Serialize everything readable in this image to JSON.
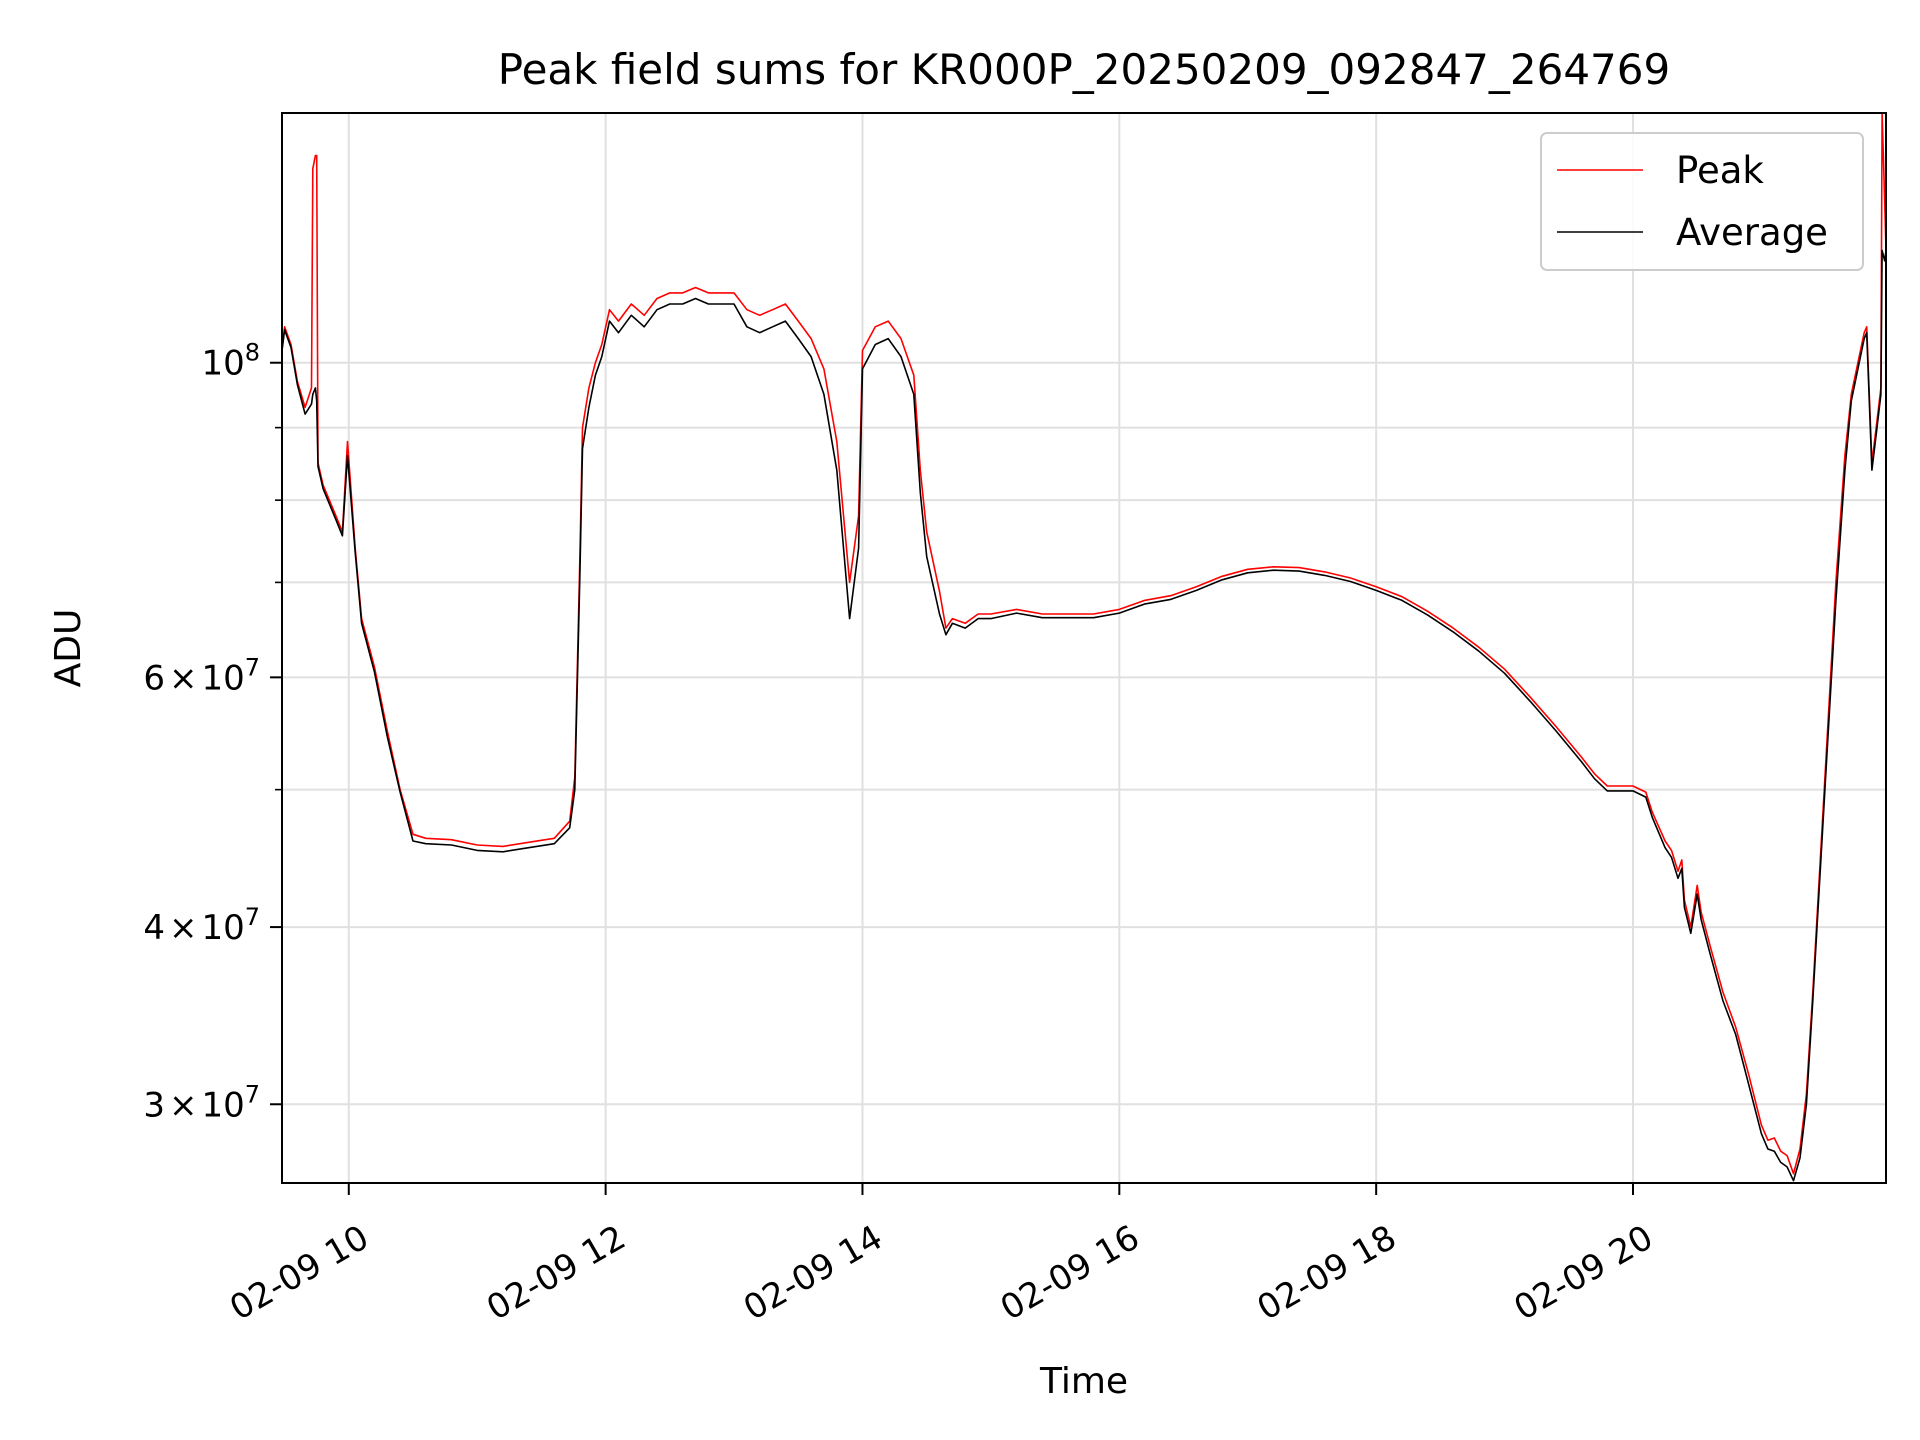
{
  "chart_data": {
    "type": "line",
    "title": "Peak field sums for KR000P_20250209_092847_264769",
    "xlabel": "Time",
    "ylabel": "ADU",
    "x_unit": "hour of 2025-02-09",
    "xlim": [
      9.48,
      21.97
    ],
    "ylim": [
      26400000,
      150000000
    ],
    "yscale": "log",
    "grid": true,
    "legend_position": "top-right",
    "x_ticks": [
      {
        "value": 10,
        "label": "02-09 10"
      },
      {
        "value": 12,
        "label": "02-09 12"
      },
      {
        "value": 14,
        "label": "02-09 14"
      },
      {
        "value": 16,
        "label": "02-09 16"
      },
      {
        "value": 18,
        "label": "02-09 18"
      },
      {
        "value": 20,
        "label": "02-09 20"
      }
    ],
    "y_ticks": [
      {
        "value": 30000000,
        "mantissa": "3",
        "exponent": "7"
      },
      {
        "value": 40000000,
        "mantissa": "4",
        "exponent": "7"
      },
      {
        "value": 60000000,
        "mantissa": "6",
        "exponent": "7"
      },
      {
        "value": 100000000,
        "mantissa": "",
        "exponent": "8"
      }
    ],
    "y_minor_ticks": [
      50000000,
      70000000,
      80000000,
      90000000
    ],
    "series": [
      {
        "name": "Peak",
        "color": "#ff0000",
        "points": [
          [
            9.48,
            102000000
          ],
          [
            9.5,
            106000000
          ],
          [
            9.55,
            103000000
          ],
          [
            9.6,
            97000000
          ],
          [
            9.66,
            93000000
          ],
          [
            9.71,
            96000000
          ],
          [
            9.72,
            137000000
          ],
          [
            9.74,
            140000000
          ],
          [
            9.75,
            140000000
          ],
          [
            9.76,
            85000000
          ],
          [
            9.8,
            82000000
          ],
          [
            9.9,
            78000000
          ],
          [
            9.95,
            76000000
          ],
          [
            9.99,
            88000000
          ],
          [
            10.05,
            74000000
          ],
          [
            10.1,
            66000000
          ],
          [
            10.2,
            61000000
          ],
          [
            10.3,
            55000000
          ],
          [
            10.4,
            50000000
          ],
          [
            10.5,
            46500000
          ],
          [
            10.6,
            46200000
          ],
          [
            10.8,
            46100000
          ],
          [
            11.0,
            45700000
          ],
          [
            11.2,
            45600000
          ],
          [
            11.4,
            45900000
          ],
          [
            11.6,
            46200000
          ],
          [
            11.72,
            47500000
          ],
          [
            11.76,
            51000000
          ],
          [
            11.8,
            73000000
          ],
          [
            11.82,
            90000000
          ],
          [
            11.87,
            96000000
          ],
          [
            11.92,
            100000000
          ],
          [
            11.97,
            103000000
          ],
          [
            12.03,
            109000000
          ],
          [
            12.1,
            107000000
          ],
          [
            12.2,
            110000000
          ],
          [
            12.3,
            108000000
          ],
          [
            12.4,
            111000000
          ],
          [
            12.5,
            112000000
          ],
          [
            12.6,
            112000000
          ],
          [
            12.7,
            113000000
          ],
          [
            12.8,
            112000000
          ],
          [
            12.9,
            112000000
          ],
          [
            13.0,
            112000000
          ],
          [
            13.1,
            109000000
          ],
          [
            13.2,
            108000000
          ],
          [
            13.3,
            109000000
          ],
          [
            13.4,
            110000000
          ],
          [
            13.5,
            107000000
          ],
          [
            13.6,
            104000000
          ],
          [
            13.7,
            99000000
          ],
          [
            13.8,
            88000000
          ],
          [
            13.9,
            70000000
          ],
          [
            13.97,
            78000000
          ],
          [
            14.0,
            102000000
          ],
          [
            14.1,
            106000000
          ],
          [
            14.2,
            107000000
          ],
          [
            14.3,
            104000000
          ],
          [
            14.4,
            98000000
          ],
          [
            14.45,
            84000000
          ],
          [
            14.5,
            76000000
          ],
          [
            14.6,
            69000000
          ],
          [
            14.65,
            65000000
          ],
          [
            14.7,
            66000000
          ],
          [
            14.8,
            65500000
          ],
          [
            14.9,
            66500000
          ],
          [
            15.0,
            66500000
          ],
          [
            15.2,
            67000000
          ],
          [
            15.4,
            66500000
          ],
          [
            15.6,
            66500000
          ],
          [
            15.8,
            66500000
          ],
          [
            16.0,
            67000000
          ],
          [
            16.2,
            68000000
          ],
          [
            16.4,
            68500000
          ],
          [
            16.6,
            69500000
          ],
          [
            16.8,
            70700000
          ],
          [
            17.0,
            71500000
          ],
          [
            17.2,
            71800000
          ],
          [
            17.4,
            71700000
          ],
          [
            17.6,
            71200000
          ],
          [
            17.8,
            70500000
          ],
          [
            18.0,
            69500000
          ],
          [
            18.2,
            68400000
          ],
          [
            18.4,
            66800000
          ],
          [
            18.6,
            65000000
          ],
          [
            18.8,
            63000000
          ],
          [
            19.0,
            60800000
          ],
          [
            19.2,
            58100000
          ],
          [
            19.4,
            55400000
          ],
          [
            19.6,
            52700000
          ],
          [
            19.7,
            51300000
          ],
          [
            19.8,
            50300000
          ],
          [
            20.0,
            50300000
          ],
          [
            20.1,
            49800000
          ],
          [
            20.15,
            48200000
          ],
          [
            20.25,
            46000000
          ],
          [
            20.3,
            45300000
          ],
          [
            20.35,
            43800000
          ],
          [
            20.38,
            44600000
          ],
          [
            20.4,
            41800000
          ],
          [
            20.45,
            40000000
          ],
          [
            20.5,
            42800000
          ],
          [
            20.53,
            41000000
          ],
          [
            20.6,
            38800000
          ],
          [
            20.7,
            36000000
          ],
          [
            20.8,
            34000000
          ],
          [
            20.9,
            31500000
          ],
          [
            21.0,
            29000000
          ],
          [
            21.05,
            28300000
          ],
          [
            21.1,
            28400000
          ],
          [
            21.15,
            27800000
          ],
          [
            21.2,
            27600000
          ],
          [
            21.25,
            26800000
          ],
          [
            21.3,
            27900000
          ],
          [
            21.35,
            30500000
          ],
          [
            21.4,
            36000000
          ],
          [
            21.5,
            52000000
          ],
          [
            21.58,
            70000000
          ],
          [
            21.65,
            86000000
          ],
          [
            21.7,
            95000000
          ],
          [
            21.8,
            105000000
          ],
          [
            21.82,
            106000000
          ],
          [
            21.86,
            85000000
          ],
          [
            21.9,
            91000000
          ],
          [
            21.93,
            96000000
          ],
          [
            21.94,
            150000000
          ],
          [
            21.96,
            130000000
          ],
          [
            21.97,
            120000000
          ]
        ]
      },
      {
        "name": "Average",
        "color": "#000000",
        "points": [
          [
            9.48,
            102000000
          ],
          [
            9.5,
            105500000
          ],
          [
            9.55,
            102500000
          ],
          [
            9.6,
            96500000
          ],
          [
            9.66,
            92000000
          ],
          [
            9.71,
            93500000
          ],
          [
            9.72,
            95000000
          ],
          [
            9.74,
            96000000
          ],
          [
            9.75,
            94000000
          ],
          [
            9.76,
            84500000
          ],
          [
            9.8,
            81500000
          ],
          [
            9.9,
            77500000
          ],
          [
            9.95,
            75500000
          ],
          [
            9.99,
            86000000
          ],
          [
            10.05,
            73500000
          ],
          [
            10.1,
            65500000
          ],
          [
            10.2,
            60500000
          ],
          [
            10.3,
            54500000
          ],
          [
            10.4,
            49800000
          ],
          [
            10.5,
            46000000
          ],
          [
            10.6,
            45800000
          ],
          [
            10.8,
            45700000
          ],
          [
            11.0,
            45300000
          ],
          [
            11.2,
            45200000
          ],
          [
            11.4,
            45500000
          ],
          [
            11.6,
            45800000
          ],
          [
            11.72,
            47000000
          ],
          [
            11.76,
            50000000
          ],
          [
            11.8,
            71000000
          ],
          [
            11.82,
            87000000
          ],
          [
            11.87,
            93000000
          ],
          [
            11.92,
            98000000
          ],
          [
            11.97,
            101000000
          ],
          [
            12.03,
            107000000
          ],
          [
            12.1,
            105000000
          ],
          [
            12.2,
            108000000
          ],
          [
            12.3,
            106000000
          ],
          [
            12.4,
            109000000
          ],
          [
            12.5,
            110000000
          ],
          [
            12.6,
            110000000
          ],
          [
            12.7,
            111000000
          ],
          [
            12.8,
            110000000
          ],
          [
            12.9,
            110000000
          ],
          [
            13.0,
            110000000
          ],
          [
            13.1,
            106000000
          ],
          [
            13.2,
            105000000
          ],
          [
            13.3,
            106000000
          ],
          [
            13.4,
            107000000
          ],
          [
            13.5,
            104000000
          ],
          [
            13.6,
            101000000
          ],
          [
            13.7,
            95000000
          ],
          [
            13.8,
            84000000
          ],
          [
            13.9,
            66000000
          ],
          [
            13.97,
            74000000
          ],
          [
            14.0,
            99000000
          ],
          [
            14.1,
            103000000
          ],
          [
            14.2,
            104000000
          ],
          [
            14.3,
            101000000
          ],
          [
            14.4,
            95000000
          ],
          [
            14.45,
            81000000
          ],
          [
            14.5,
            73000000
          ],
          [
            14.6,
            66500000
          ],
          [
            14.65,
            64300000
          ],
          [
            14.7,
            65500000
          ],
          [
            14.8,
            65000000
          ],
          [
            14.9,
            66000000
          ],
          [
            15.0,
            66000000
          ],
          [
            15.2,
            66600000
          ],
          [
            15.4,
            66100000
          ],
          [
            15.6,
            66100000
          ],
          [
            15.8,
            66100000
          ],
          [
            16.0,
            66600000
          ],
          [
            16.2,
            67600000
          ],
          [
            16.4,
            68100000
          ],
          [
            16.6,
            69100000
          ],
          [
            16.8,
            70300000
          ],
          [
            17.0,
            71100000
          ],
          [
            17.2,
            71400000
          ],
          [
            17.4,
            71300000
          ],
          [
            17.6,
            70800000
          ],
          [
            17.8,
            70100000
          ],
          [
            18.0,
            69100000
          ],
          [
            18.2,
            68000000
          ],
          [
            18.4,
            66400000
          ],
          [
            18.6,
            64600000
          ],
          [
            18.8,
            62600000
          ],
          [
            19.0,
            60400000
          ],
          [
            19.2,
            57700000
          ],
          [
            19.4,
            55000000
          ],
          [
            19.6,
            52300000
          ],
          [
            19.7,
            50900000
          ],
          [
            19.8,
            49900000
          ],
          [
            20.0,
            49900000
          ],
          [
            20.1,
            49400000
          ],
          [
            20.15,
            47800000
          ],
          [
            20.25,
            45500000
          ],
          [
            20.3,
            44800000
          ],
          [
            20.35,
            43300000
          ],
          [
            20.38,
            44000000
          ],
          [
            20.4,
            41300000
          ],
          [
            20.45,
            39600000
          ],
          [
            20.5,
            42200000
          ],
          [
            20.53,
            40500000
          ],
          [
            20.6,
            38300000
          ],
          [
            20.7,
            35500000
          ],
          [
            20.8,
            33600000
          ],
          [
            20.9,
            31000000
          ],
          [
            21.0,
            28600000
          ],
          [
            21.05,
            27900000
          ],
          [
            21.1,
            27800000
          ],
          [
            21.15,
            27300000
          ],
          [
            21.2,
            27100000
          ],
          [
            21.25,
            26500000
          ],
          [
            21.3,
            27500000
          ],
          [
            21.35,
            30000000
          ],
          [
            21.4,
            35500000
          ],
          [
            21.5,
            51000000
          ],
          [
            21.58,
            68000000
          ],
          [
            21.65,
            84000000
          ],
          [
            21.7,
            94000000
          ],
          [
            21.8,
            104000000
          ],
          [
            21.82,
            105000000
          ],
          [
            21.86,
            84000000
          ],
          [
            21.9,
            90000000
          ],
          [
            21.93,
            95000000
          ],
          [
            21.94,
            120000000
          ],
          [
            21.96,
            118000000
          ],
          [
            21.97,
            120000000
          ]
        ]
      }
    ]
  }
}
